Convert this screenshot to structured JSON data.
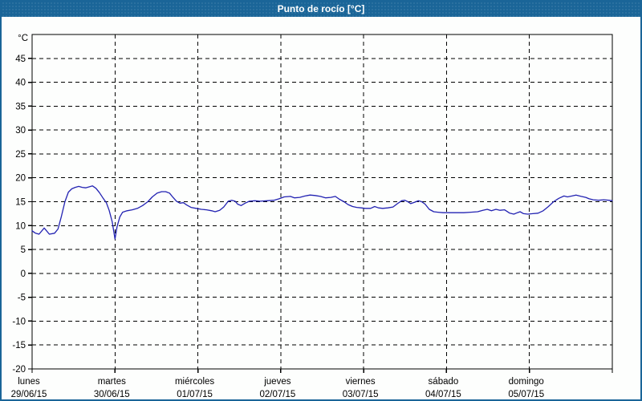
{
  "window": {
    "title": "Punto de rocío [°C]"
  },
  "colors": {
    "titlebar_bg": "#1a6598",
    "title_text": "#ffffff",
    "window_border": "#1a6598",
    "plot_bg": "#ffffff",
    "grid": "#000000",
    "line": "#2222b2",
    "label_text": "#000000"
  },
  "chart_data": {
    "type": "line",
    "title": "Punto de rocío [°C]",
    "ylabel": "°C",
    "ylim": [
      -20,
      50
    ],
    "y_tick_step": 5,
    "y_tick_labels": [
      45,
      40,
      35,
      30,
      25,
      20,
      15,
      10,
      5,
      0,
      -5,
      -10,
      -15,
      -20
    ],
    "x_unit": "hours",
    "xlim": [
      0,
      168
    ],
    "grid": "dashed",
    "legend": "none",
    "x_days": [
      {
        "name": "lunes",
        "date": "29/06/15"
      },
      {
        "name": "martes",
        "date": "30/06/15"
      },
      {
        "name": "miércoles",
        "date": "01/07/15"
      },
      {
        "name": "jueves",
        "date": "02/07/15"
      },
      {
        "name": "viernes",
        "date": "03/07/15"
      },
      {
        "name": "sábado",
        "date": "04/07/15"
      },
      {
        "name": "domingo",
        "date": "05/07/15"
      }
    ],
    "series": [
      {
        "name": "Punto de rocío",
        "color": "#2222b2",
        "points": [
          [
            0,
            8.9
          ],
          [
            1,
            8.4
          ],
          [
            2,
            8.2
          ],
          [
            3.5,
            9.5
          ],
          [
            5,
            8.2
          ],
          [
            6.5,
            8.4
          ],
          [
            7.5,
            9.3
          ],
          [
            8.5,
            12
          ],
          [
            9.5,
            15
          ],
          [
            10.5,
            17
          ],
          [
            11.5,
            17.7
          ],
          [
            12.5,
            18
          ],
          [
            13.5,
            18.2
          ],
          [
            14.5,
            18
          ],
          [
            15.5,
            17.9
          ],
          [
            16.5,
            18.1
          ],
          [
            17.5,
            18.3
          ],
          [
            18.5,
            17.8
          ],
          [
            19.5,
            16.9
          ],
          [
            20.5,
            15.8
          ],
          [
            21.5,
            14.8
          ],
          [
            22.3,
            13.2
          ],
          [
            23.2,
            10.8
          ],
          [
            24,
            7.2
          ],
          [
            24.6,
            9.8
          ],
          [
            25.4,
            11.8
          ],
          [
            26.2,
            12.8
          ],
          [
            27.5,
            13.1
          ],
          [
            29,
            13.3
          ],
          [
            30.5,
            13.6
          ],
          [
            32,
            14.2
          ],
          [
            33.5,
            15
          ],
          [
            34.8,
            16
          ],
          [
            36.2,
            16.8
          ],
          [
            37.5,
            17.1
          ],
          [
            38.7,
            17.1
          ],
          [
            39.8,
            16.8
          ],
          [
            40.8,
            15.9
          ],
          [
            41.8,
            15.1
          ],
          [
            42.8,
            14.7
          ],
          [
            43.8,
            14.8
          ],
          [
            44.8,
            14.3
          ],
          [
            46,
            13.8
          ],
          [
            47.5,
            13.6
          ],
          [
            49,
            13.4
          ],
          [
            50.5,
            13.3
          ],
          [
            52,
            13.1
          ],
          [
            53,
            12.9
          ],
          [
            54.3,
            13.2
          ],
          [
            55.5,
            13.9
          ],
          [
            56.8,
            15.1
          ],
          [
            57.8,
            15.3
          ],
          [
            58.8,
            15.1
          ],
          [
            59.5,
            14.5
          ],
          [
            60.5,
            14.2
          ],
          [
            61.7,
            14.7
          ],
          [
            62.9,
            15.1
          ],
          [
            64.5,
            15.2
          ],
          [
            66,
            15.1
          ],
          [
            68,
            15.2
          ],
          [
            70,
            15.3
          ],
          [
            71.5,
            15.6
          ],
          [
            73,
            16
          ],
          [
            74.8,
            16.1
          ],
          [
            76,
            15.8
          ],
          [
            77.5,
            15.9
          ],
          [
            79,
            16.2
          ],
          [
            80.5,
            16.4
          ],
          [
            82,
            16.3
          ],
          [
            83.5,
            16.1
          ],
          [
            85,
            15.8
          ],
          [
            86.5,
            15.9
          ],
          [
            87.8,
            16.1
          ],
          [
            89,
            15.5
          ],
          [
            90.3,
            15
          ],
          [
            91.5,
            14.4
          ],
          [
            92.8,
            14
          ],
          [
            94,
            13.8
          ],
          [
            95.3,
            13.7
          ],
          [
            96.5,
            13.6
          ],
          [
            98,
            13.6
          ],
          [
            99.2,
            14
          ],
          [
            100.3,
            13.7
          ],
          [
            101.5,
            13.6
          ],
          [
            103,
            13.7
          ],
          [
            104.5,
            13.9
          ],
          [
            105.8,
            14.6
          ],
          [
            107,
            15.2
          ],
          [
            107.9,
            15.3
          ],
          [
            108.8,
            15
          ],
          [
            109.6,
            14.6
          ],
          [
            110.8,
            14.9
          ],
          [
            111.8,
            15.2
          ],
          [
            112.8,
            15
          ],
          [
            113.8,
            14.5
          ],
          [
            115,
            13.4
          ],
          [
            116.3,
            12.9
          ],
          [
            117.5,
            12.8
          ],
          [
            119,
            12.7
          ],
          [
            121,
            12.7
          ],
          [
            123,
            12.7
          ],
          [
            125,
            12.7
          ],
          [
            127,
            12.8
          ],
          [
            129,
            12.9
          ],
          [
            130.5,
            13.2
          ],
          [
            131.8,
            13.4
          ],
          [
            133,
            13.1
          ],
          [
            134.3,
            13.4
          ],
          [
            135.5,
            13.2
          ],
          [
            136.8,
            13.3
          ],
          [
            138.3,
            12.6
          ],
          [
            139.5,
            12.4
          ],
          [
            140.5,
            12.7
          ],
          [
            141.3,
            12.9
          ],
          [
            142.3,
            12.5
          ],
          [
            143.5,
            12.4
          ],
          [
            145,
            12.5
          ],
          [
            146.5,
            12.6
          ],
          [
            148,
            13.1
          ],
          [
            149.5,
            14
          ],
          [
            151,
            15
          ],
          [
            152.5,
            15.7
          ],
          [
            154,
            16.2
          ],
          [
            155,
            16
          ],
          [
            156.3,
            16.2
          ],
          [
            157.5,
            16.4
          ],
          [
            159,
            16.1
          ],
          [
            160.3,
            15.9
          ],
          [
            161.3,
            15.6
          ],
          [
            162.5,
            15.4
          ],
          [
            164,
            15.3
          ],
          [
            165.5,
            15.4
          ],
          [
            167,
            15.3
          ],
          [
            168,
            15.2
          ]
        ]
      }
    ]
  }
}
